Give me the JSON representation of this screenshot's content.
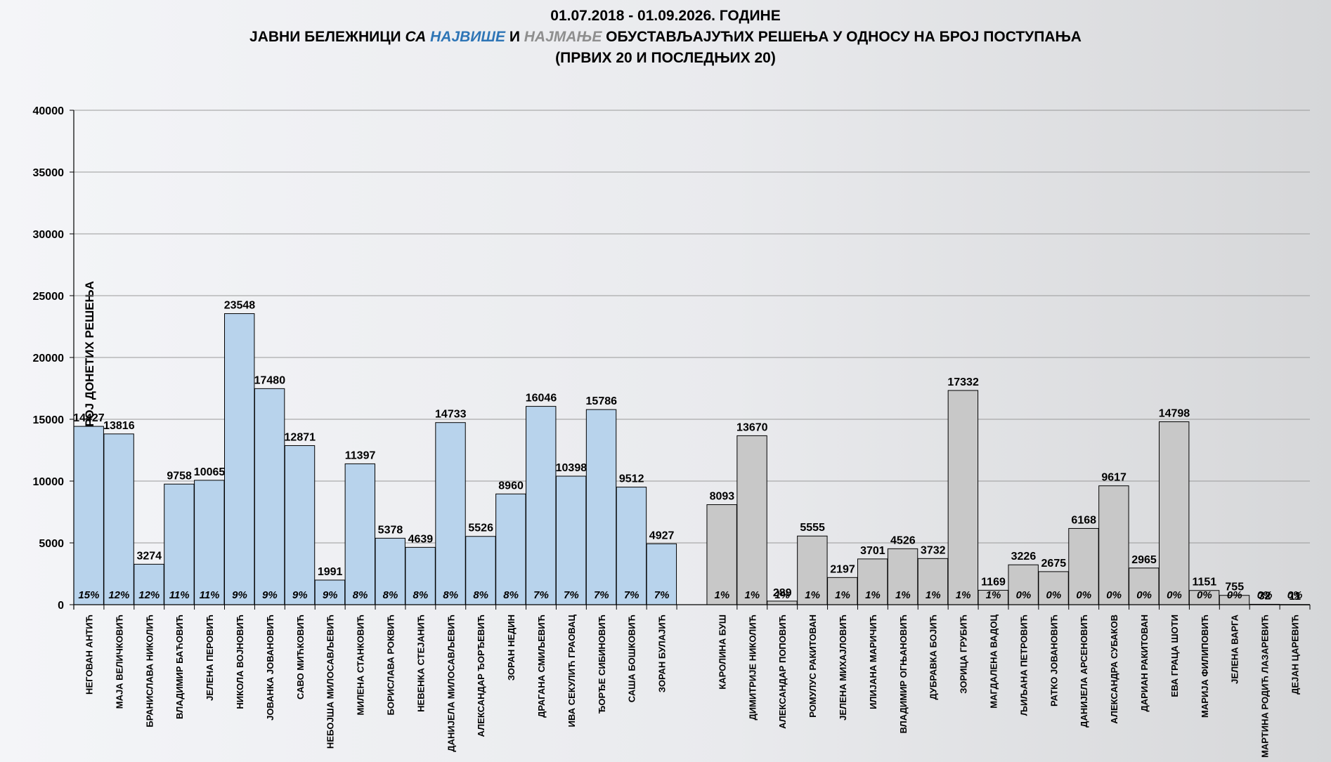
{
  "title": {
    "line1": "01.07.2018 - 01.09.2026. ГОДИНЕ",
    "line2_a": "ЈАВНИ БЕЛЕЖНИЦИ ",
    "line2_b": "СА ",
    "line2_c": "НАЈВИШЕ",
    "line2_d": " И ",
    "line2_e": "НАЈМАЊЕ",
    "line2_f": " ОБУСТАВЉАЈУЋИХ РЕШЕЊА У ОДНОСУ НА БРОЈ ПОСТУПАЊА",
    "line3": "(ПРВИХ 20 И ПОСЛЕДЊИХ 20)"
  },
  "chart_data": {
    "type": "bar",
    "ylabel": "БРОЈ ДОНЕТИХ РЕШЕЊА",
    "ylim": [
      0,
      40000
    ],
    "yticks": [
      0,
      5000,
      10000,
      15000,
      20000,
      25000,
      30000,
      35000,
      40000
    ],
    "grid": true,
    "colors": {
      "top": "#b8d3ec",
      "bottom": "#c8c8c8",
      "edge": "#000000"
    },
    "series": [
      {
        "categories": [
          "НЕГОВАН АНТИЋ",
          "МАЈА ВЕЛИЧКОВИЋ",
          "БРАНИСЛАВА НИКОЛИЋ",
          "ВЛАДИМИР БАЋОВИЋ",
          "ЈЕЛЕНА ПЕРОВИЋ",
          "НИКОЛА ВОЈНОВИЋ",
          "ЈОВАНКА ЈОВАНОВИЋ",
          "САВО МИЋКОВИЋ",
          "НЕБОЈША МИЛОСАВЉЕВИЋ",
          "МИЛЕНА СТАНКОВИЋ",
          "БОРИСЛАВА РОКВИЋ",
          "НЕВЕНКА СТЕЈАНИЋ",
          "ДАНИЈЕЛА МИЛОСАВЉЕВИЋ",
          "АЛЕКСАНДАР ЂОРЂЕВИЋ",
          "ЗОРАН НЕДИН",
          "ДРАГАНА СМИЉЕВИЋ",
          "ИВА СЕКУЛИЋ ГРАОВАЦ",
          "ЂОРЂЕ СИБИНОВИЋ",
          "САША БОШКОВИЋ",
          "ЗОРАН БУЛАЈИЋ"
        ],
        "values": [
          14427,
          13816,
          3274,
          9758,
          10065,
          23548,
          17480,
          12871,
          1991,
          11397,
          5378,
          4639,
          14733,
          5526,
          8960,
          16046,
          10398,
          15786,
          9512,
          4927
        ],
        "percents": [
          "15%",
          "12%",
          "12%",
          "11%",
          "11%",
          "9%",
          "9%",
          "9%",
          "9%",
          "8%",
          "8%",
          "8%",
          "8%",
          "8%",
          "8%",
          "7%",
          "7%",
          "7%",
          "7%",
          "7%"
        ]
      },
      {
        "categories": [
          "КАРОЛИНА БУШ",
          "ДИМИТРИЈЕ НИКОЛИЋ",
          "АЛЕКСАНДАР ПОПОВИЋ",
          "РОМУЛУС РАКИТОВАН",
          "ЈЕЛЕНА МИХАЈЛОВИЋ",
          "ИЛИЈАНА МАРИЧИЋ",
          "ВЛАДИМИР ОГЊАНОВИЋ",
          "ДУБРАВКА БОЈИЋ",
          "ЗОРИЦА ГРУБИЋ",
          "МАГДАЛЕНА ВАДОЦ",
          "ЉИЉАНА ПЕТРОВИЋ",
          "РАТКО ЈОВАНОВИЋ",
          "ДАНИЈЕЛА АРСЕНОВИЋ",
          "АЛЕКСАНДРА СУБАКОВ",
          "ДАРИАН РАКИТОВАН",
          "ЕВА ГРАЦА ШОТИ",
          "МАРИЈА ФИЛИПОВИЋ",
          "ЈЕЛЕНА ВАРГА",
          "МАРТИНА РОДИЋ ЛАЗАРЕВИЋ",
          "ДЕЈАН ЦАРЕВИЋ"
        ],
        "values": [
          8093,
          13670,
          289,
          5555,
          2197,
          3701,
          4526,
          3732,
          17332,
          1169,
          3226,
          2675,
          6168,
          9617,
          2965,
          14798,
          1151,
          755,
          32,
          11
        ],
        "percents": [
          "1%",
          "1%",
          "1%",
          "1%",
          "1%",
          "1%",
          "1%",
          "1%",
          "1%",
          "1%",
          "0%",
          "0%",
          "0%",
          "0%",
          "0%",
          "0%",
          "0%",
          "0%",
          "0%",
          "0%"
        ]
      }
    ]
  }
}
